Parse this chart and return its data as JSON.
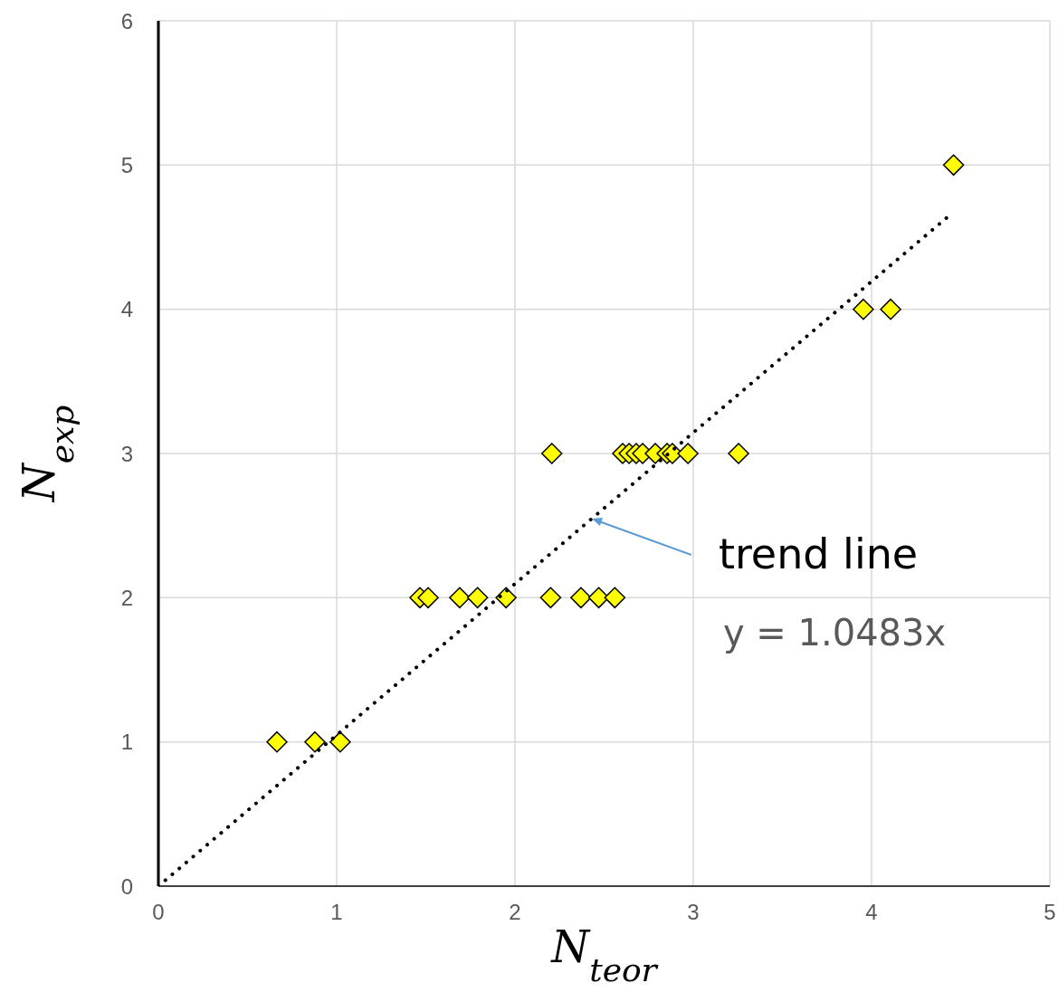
{
  "chart_data": {
    "type": "scatter",
    "xlabel": "N$_{teor}$",
    "ylabel": "N$_{exp}$",
    "xlim": [
      0,
      5
    ],
    "ylim": [
      0,
      6
    ],
    "xticks": [
      0,
      1,
      2,
      3,
      4,
      5
    ],
    "yticks": [
      0,
      1,
      2,
      3,
      4,
      5,
      6
    ],
    "grid": true,
    "marker": "diamond",
    "series": [
      {
        "color": "#ffff00",
        "x": [
          0.665,
          0.878,
          1.02,
          1.467,
          1.513,
          1.69,
          1.79,
          1.95,
          2.2,
          2.37,
          2.47,
          2.56,
          2.207,
          2.604,
          2.64,
          2.68,
          2.716,
          2.787,
          2.853,
          2.883,
          2.97,
          3.254,
          3.954,
          4.107,
          4.46
        ],
        "values": [
          1,
          1,
          1,
          2,
          2,
          2,
          2,
          2,
          2,
          2,
          2,
          2,
          3,
          3,
          3,
          3,
          3,
          3,
          3,
          3,
          3,
          3,
          4,
          4,
          5
        ]
      },
      {
        "type": "line",
        "color": "#000000",
        "line_style": "dotted",
        "marker": "none",
        "x": [
          0,
          4.42
        ],
        "values": [
          0,
          4.633
        ]
      }
    ],
    "annotations": [
      "trend line",
      "y = 1.0483x"
    ]
  }
}
